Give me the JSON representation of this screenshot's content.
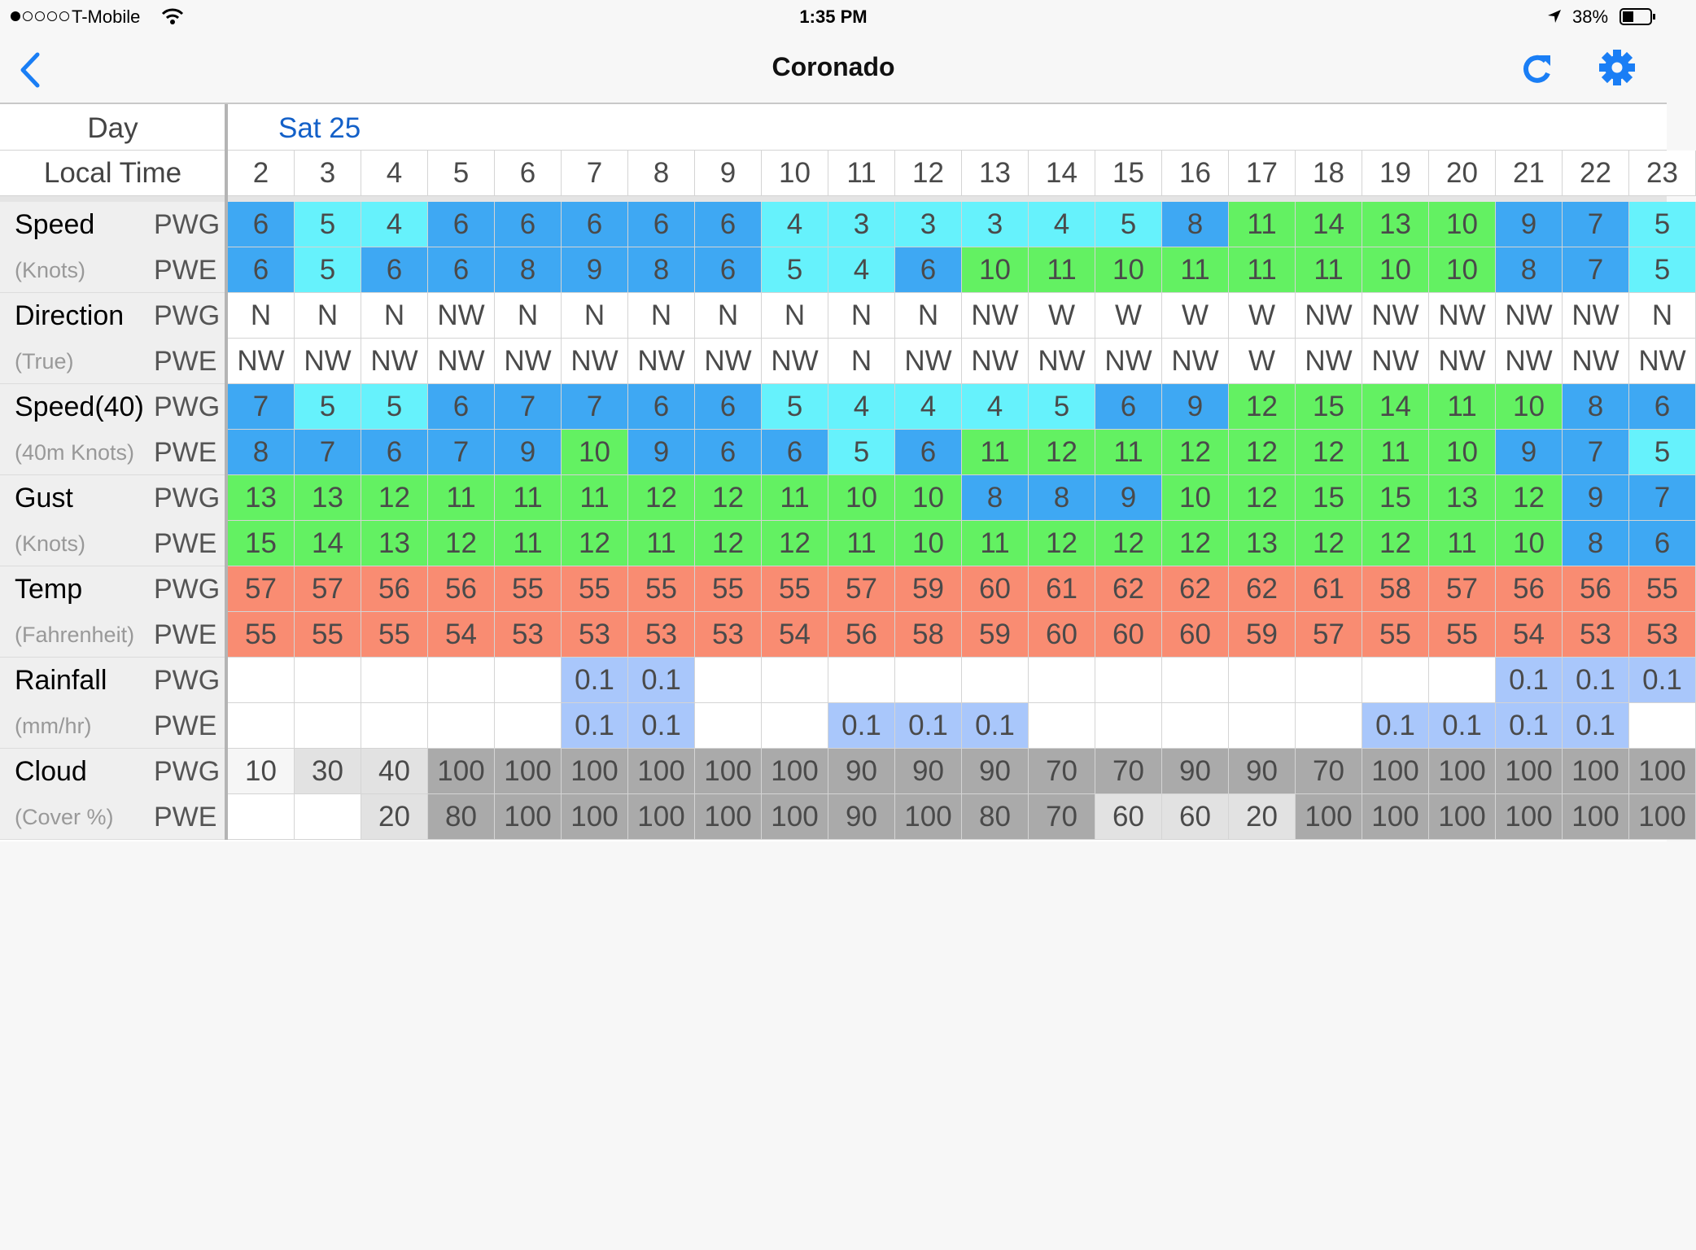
{
  "status_bar": {
    "carrier": "T-Mobile",
    "time": "1:35 PM",
    "battery": "38%"
  },
  "nav": {
    "title": "Coronado"
  },
  "table": {
    "day_label": "Day",
    "time_label": "Local Time",
    "day": "Sat 25",
    "hours": [
      2,
      3,
      4,
      5,
      6,
      7,
      8,
      9,
      10,
      11,
      12,
      13,
      14,
      15,
      16,
      17,
      18,
      19,
      20,
      21,
      22,
      23
    ],
    "groups": [
      {
        "label": "Speed",
        "unit": "(Knots)",
        "rows": [
          {
            "source": "PWG",
            "values": [
              6,
              5,
              4,
              6,
              6,
              6,
              6,
              6,
              4,
              3,
              3,
              3,
              4,
              5,
              8,
              11,
              14,
              13,
              10,
              9,
              7,
              5
            ]
          },
          {
            "source": "PWE",
            "values": [
              6,
              5,
              6,
              6,
              8,
              9,
              8,
              6,
              5,
              4,
              6,
              10,
              11,
              10,
              11,
              11,
              11,
              10,
              10,
              8,
              7,
              5
            ]
          }
        ]
      },
      {
        "label": "Direction",
        "unit": "(True)",
        "rows": [
          {
            "source": "PWG",
            "values": [
              "N",
              "N",
              "N",
              "NW",
              "N",
              "N",
              "N",
              "N",
              "N",
              "N",
              "N",
              "NW",
              "W",
              "W",
              "W",
              "W",
              "NW",
              "NW",
              "NW",
              "NW",
              "NW",
              "N"
            ]
          },
          {
            "source": "PWE",
            "values": [
              "NW",
              "NW",
              "NW",
              "NW",
              "NW",
              "NW",
              "NW",
              "NW",
              "NW",
              "N",
              "NW",
              "NW",
              "NW",
              "NW",
              "NW",
              "W",
              "NW",
              "NW",
              "NW",
              "NW",
              "NW",
              "NW"
            ]
          }
        ]
      },
      {
        "label": "Speed(40)",
        "unit": "(40m Knots)",
        "rows": [
          {
            "source": "PWG",
            "values": [
              7,
              5,
              5,
              6,
              7,
              7,
              6,
              6,
              5,
              4,
              4,
              4,
              5,
              6,
              9,
              12,
              15,
              14,
              11,
              10,
              8,
              6
            ]
          },
          {
            "source": "PWE",
            "values": [
              8,
              7,
              6,
              7,
              9,
              10,
              9,
              6,
              6,
              5,
              6,
              11,
              12,
              11,
              12,
              12,
              12,
              11,
              10,
              9,
              7,
              5
            ]
          }
        ]
      },
      {
        "label": "Gust",
        "unit": "(Knots)",
        "rows": [
          {
            "source": "PWG",
            "values": [
              13,
              13,
              12,
              11,
              11,
              11,
              12,
              12,
              11,
              10,
              10,
              8,
              8,
              9,
              10,
              12,
              15,
              15,
              13,
              12,
              9,
              7
            ]
          },
          {
            "source": "PWE",
            "values": [
              15,
              14,
              13,
              12,
              11,
              12,
              11,
              12,
              12,
              11,
              10,
              11,
              12,
              12,
              12,
              13,
              12,
              12,
              11,
              10,
              8,
              6
            ]
          }
        ]
      },
      {
        "label": "Temp",
        "unit": "(Fahrenheit)",
        "rows": [
          {
            "source": "PWG",
            "values": [
              57,
              57,
              56,
              56,
              55,
              55,
              55,
              55,
              55,
              57,
              59,
              60,
              61,
              62,
              62,
              62,
              61,
              58,
              57,
              56,
              56,
              55
            ]
          },
          {
            "source": "PWE",
            "values": [
              55,
              55,
              55,
              54,
              53,
              53,
              53,
              53,
              54,
              56,
              58,
              59,
              60,
              60,
              60,
              59,
              57,
              55,
              55,
              54,
              53,
              53
            ]
          }
        ]
      },
      {
        "label": "Rainfall",
        "unit": "(mm/hr)",
        "rows": [
          {
            "source": "PWG",
            "values": [
              null,
              null,
              null,
              null,
              null,
              0.1,
              0.1,
              null,
              null,
              null,
              null,
              null,
              null,
              null,
              null,
              null,
              null,
              null,
              null,
              0.1,
              0.1,
              0.1
            ]
          },
          {
            "source": "PWE",
            "values": [
              null,
              null,
              null,
              null,
              null,
              0.1,
              0.1,
              null,
              null,
              0.1,
              0.1,
              0.1,
              null,
              null,
              null,
              null,
              null,
              0.1,
              0.1,
              0.1,
              0.1,
              null
            ]
          }
        ]
      },
      {
        "label": "Cloud",
        "unit": "(Cover %)",
        "rows": [
          {
            "source": "PWG",
            "values": [
              10,
              30,
              40,
              100,
              100,
              100,
              100,
              100,
              100,
              90,
              90,
              90,
              70,
              70,
              90,
              90,
              70,
              100,
              100,
              100,
              100,
              100
            ]
          },
          {
            "source": "PWE",
            "values": [
              null,
              null,
              20,
              80,
              100,
              100,
              100,
              100,
              100,
              90,
              100,
              80,
              70,
              60,
              60,
              20,
              100,
              100,
              100,
              100,
              100,
              100
            ]
          }
        ]
      }
    ]
  }
}
